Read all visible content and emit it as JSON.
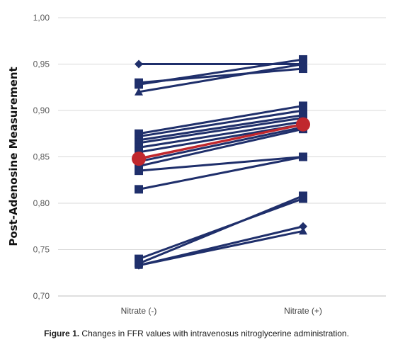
{
  "caption": {
    "label": "Figure 1.",
    "text": "Changes in FFR values with intravenosus nitroglycerine administration."
  },
  "chart_data": {
    "type": "line",
    "ylabel": "Post-Adenosine Measurement",
    "ylim": [
      0.7,
      1.0
    ],
    "yticks": [
      "0,70",
      "0,75",
      "0,80",
      "0,85",
      "0,90",
      "0,95",
      "1,00"
    ],
    "yticks_values": [
      0.7,
      0.75,
      0.8,
      0.85,
      0.9,
      0.95,
      1.0
    ],
    "categories": [
      "Nitrate (-)",
      "Nitrate (+)"
    ],
    "grid": true,
    "colors": {
      "series": "#1f2f6b",
      "mean": "#c0272d",
      "grid": "#d9d9d9"
    },
    "series": [
      {
        "values": [
          0.95,
          0.95
        ],
        "marker": "diamond"
      },
      {
        "values": [
          0.93,
          0.945
        ],
        "marker": "square"
      },
      {
        "values": [
          0.928,
          0.955
        ],
        "marker": "square"
      },
      {
        "values": [
          0.92,
          0.95
        ],
        "marker": "triangle"
      },
      {
        "values": [
          0.875,
          0.905
        ],
        "marker": "square"
      },
      {
        "values": [
          0.872,
          0.9
        ],
        "marker": "square"
      },
      {
        "values": [
          0.868,
          0.895
        ],
        "marker": "square"
      },
      {
        "values": [
          0.865,
          0.892
        ],
        "marker": "square"
      },
      {
        "values": [
          0.86,
          0.888
        ],
        "marker": "square"
      },
      {
        "values": [
          0.855,
          0.885
        ],
        "marker": "square"
      },
      {
        "values": [
          0.845,
          0.882
        ],
        "marker": "square"
      },
      {
        "values": [
          0.84,
          0.88
        ],
        "marker": "square"
      },
      {
        "values": [
          0.835,
          0.85
        ],
        "marker": "square"
      },
      {
        "values": [
          0.815,
          0.85
        ],
        "marker": "square"
      },
      {
        "values": [
          0.74,
          0.805
        ],
        "marker": "square"
      },
      {
        "values": [
          0.735,
          0.808
        ],
        "marker": "square"
      },
      {
        "values": [
          0.733,
          0.775
        ],
        "marker": "diamond"
      },
      {
        "values": [
          0.733,
          0.77
        ],
        "marker": "triangle"
      }
    ],
    "mean": {
      "values": [
        0.848,
        0.885
      ],
      "marker": "circle"
    }
  }
}
